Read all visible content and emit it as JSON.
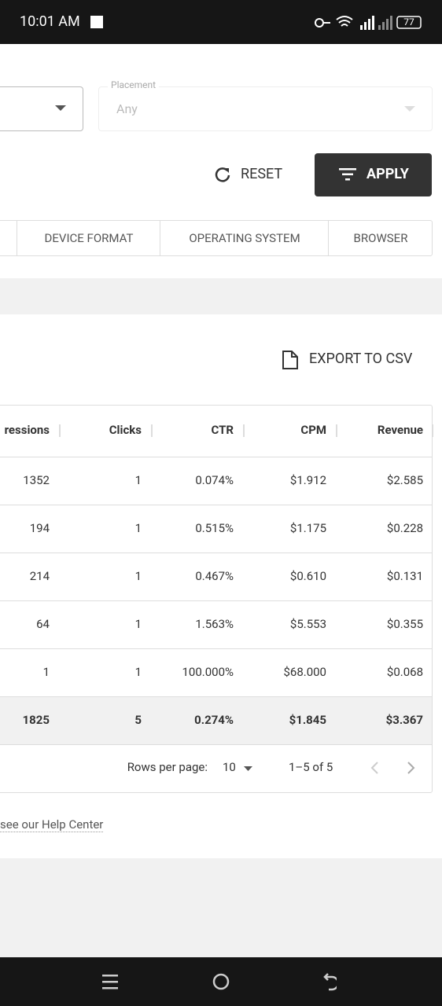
{
  "status_bar": {
    "time": "10:01 AM",
    "battery": "77"
  },
  "filters": {
    "placement_label": "Placement",
    "placement_value": "Any"
  },
  "buttons": {
    "reset": "RESET",
    "apply": "APPLY"
  },
  "tabs": [
    "DEVICE FORMAT",
    "OPERATING SYSTEM",
    "BROWSER"
  ],
  "export": "EXPORT TO CSV",
  "table": {
    "headers": [
      "ressions",
      "Clicks",
      "CTR",
      "CPM",
      "Revenue"
    ],
    "rows": [
      [
        "1352",
        "1",
        "0.074%",
        "$1.912",
        "$2.585"
      ],
      [
        "194",
        "1",
        "0.515%",
        "$1.175",
        "$0.228"
      ],
      [
        "214",
        "1",
        "0.467%",
        "$0.610",
        "$0.131"
      ],
      [
        "64",
        "1",
        "1.563%",
        "$5.553",
        "$0.355"
      ],
      [
        "1",
        "1",
        "100.000%",
        "$68.000",
        "$0.068"
      ]
    ],
    "totals": [
      "1825",
      "5",
      "0.274%",
      "$1.845",
      "$3.367"
    ]
  },
  "pagination": {
    "rows_per_page_label": "Rows per page:",
    "rows_per_page": "10",
    "range": "1–5 of 5"
  },
  "help": "see our Help Center"
}
